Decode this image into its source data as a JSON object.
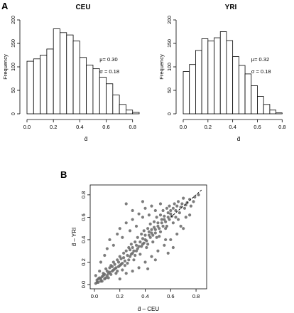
{
  "panel_labels": {
    "a": "A",
    "b": "B"
  },
  "chart_data": [
    {
      "type": "bar",
      "title": "CEU",
      "xlabel": "d̄",
      "ylabel": "Frequency",
      "bin_width": 0.05,
      "bin_start": 0.0,
      "values": [
        112,
        117,
        125,
        138,
        181,
        173,
        168,
        155,
        120,
        104,
        96,
        78,
        64,
        40,
        20,
        8,
        3
      ],
      "xlim": [
        0.0,
        0.85
      ],
      "ylim": [
        0,
        200
      ],
      "x_ticks": [
        "0.0",
        "0.2",
        "0.4",
        "0.6",
        "0.8"
      ],
      "y_ticks": [
        "0",
        "50",
        "100",
        "150",
        "200"
      ],
      "stats": {
        "mu": "μ= 0.30",
        "sigma": "σ = 0.18"
      }
    },
    {
      "type": "bar",
      "title": "YRI",
      "xlabel": "d̄",
      "ylabel": "Frequency",
      "bin_width": 0.05,
      "bin_start": 0.0,
      "values": [
        90,
        105,
        135,
        160,
        155,
        162,
        175,
        156,
        122,
        103,
        85,
        60,
        37,
        20,
        8,
        2
      ],
      "xlim": [
        0.0,
        0.85
      ],
      "ylim": [
        0,
        200
      ],
      "x_ticks": [
        "0.0",
        "0.2",
        "0.4",
        "0.6",
        "0.8"
      ],
      "y_ticks": [
        "0",
        "50",
        "100",
        "150",
        "200"
      ],
      "stats": {
        "mu": "μ= 0.32",
        "sigma": "σ = 0.18"
      }
    },
    {
      "type": "scatter",
      "xlabel": "d̄ – CEU",
      "ylabel": "d̄ – YRI",
      "xlim": [
        0.0,
        0.85
      ],
      "ylim": [
        0.0,
        0.85
      ],
      "x_ticks": [
        "0.0",
        "0.2",
        "0.4",
        "0.6",
        "0.8"
      ],
      "y_ticks": [
        "0.0",
        "0.2",
        "0.4",
        "0.6",
        "0.8"
      ],
      "reference_line": "y = x (dashed)",
      "point_color": "#666666",
      "points": [
        [
          0.02,
          0.02
        ],
        [
          0.03,
          0.05
        ],
        [
          0.05,
          0.03
        ],
        [
          0.01,
          0.08
        ],
        [
          0.06,
          0.07
        ],
        [
          0.04,
          0.12
        ],
        [
          0.08,
          0.05
        ],
        [
          0.07,
          0.1
        ],
        [
          0.1,
          0.08
        ],
        [
          0.09,
          0.14
        ],
        [
          0.12,
          0.11
        ],
        [
          0.11,
          0.06
        ],
        [
          0.13,
          0.17
        ],
        [
          0.14,
          0.12
        ],
        [
          0.15,
          0.2
        ],
        [
          0.16,
          0.14
        ],
        [
          0.17,
          0.1
        ],
        [
          0.18,
          0.22
        ],
        [
          0.19,
          0.16
        ],
        [
          0.2,
          0.25
        ],
        [
          0.21,
          0.18
        ],
        [
          0.22,
          0.13
        ],
        [
          0.23,
          0.28
        ],
        [
          0.24,
          0.21
        ],
        [
          0.25,
          0.3
        ],
        [
          0.26,
          0.19
        ],
        [
          0.27,
          0.33
        ],
        [
          0.28,
          0.25
        ],
        [
          0.29,
          0.36
        ],
        [
          0.3,
          0.28
        ],
        [
          0.31,
          0.22
        ],
        [
          0.32,
          0.38
        ],
        [
          0.33,
          0.3
        ],
        [
          0.34,
          0.42
        ],
        [
          0.35,
          0.34
        ],
        [
          0.36,
          0.27
        ],
        [
          0.37,
          0.45
        ],
        [
          0.38,
          0.36
        ],
        [
          0.39,
          0.48
        ],
        [
          0.4,
          0.4
        ],
        [
          0.41,
          0.33
        ],
        [
          0.42,
          0.5
        ],
        [
          0.43,
          0.44
        ],
        [
          0.44,
          0.54
        ],
        [
          0.45,
          0.46
        ],
        [
          0.46,
          0.38
        ],
        [
          0.47,
          0.56
        ],
        [
          0.48,
          0.49
        ],
        [
          0.49,
          0.6
        ],
        [
          0.5,
          0.52
        ],
        [
          0.51,
          0.43
        ],
        [
          0.52,
          0.62
        ],
        [
          0.53,
          0.55
        ],
        [
          0.54,
          0.66
        ],
        [
          0.55,
          0.58
        ],
        [
          0.56,
          0.5
        ],
        [
          0.57,
          0.68
        ],
        [
          0.58,
          0.6
        ],
        [
          0.59,
          0.7
        ],
        [
          0.6,
          0.63
        ],
        [
          0.62,
          0.55
        ],
        [
          0.63,
          0.72
        ],
        [
          0.64,
          0.66
        ],
        [
          0.66,
          0.74
        ],
        [
          0.68,
          0.69
        ],
        [
          0.7,
          0.77
        ],
        [
          0.72,
          0.71
        ],
        [
          0.75,
          0.76
        ],
        [
          0.78,
          0.74
        ],
        [
          0.82,
          0.8
        ],
        [
          0.05,
          0.2
        ],
        [
          0.08,
          0.26
        ],
        [
          0.1,
          0.32
        ],
        [
          0.12,
          0.4
        ],
        [
          0.15,
          0.35
        ],
        [
          0.18,
          0.45
        ],
        [
          0.2,
          0.5
        ],
        [
          0.22,
          0.42
        ],
        [
          0.25,
          0.55
        ],
        [
          0.28,
          0.48
        ],
        [
          0.3,
          0.58
        ],
        [
          0.33,
          0.52
        ],
        [
          0.35,
          0.63
        ],
        [
          0.38,
          0.6
        ],
        [
          0.4,
          0.68
        ],
        [
          0.43,
          0.62
        ],
        [
          0.45,
          0.7
        ],
        [
          0.48,
          0.66
        ],
        [
          0.52,
          0.72
        ],
        [
          0.25,
          0.72
        ],
        [
          0.38,
          0.74
        ],
        [
          0.3,
          0.66
        ],
        [
          0.2,
          0.05
        ],
        [
          0.25,
          0.1
        ],
        [
          0.3,
          0.12
        ],
        [
          0.35,
          0.15
        ],
        [
          0.4,
          0.2
        ],
        [
          0.45,
          0.25
        ],
        [
          0.5,
          0.3
        ],
        [
          0.55,
          0.35
        ],
        [
          0.6,
          0.4
        ],
        [
          0.65,
          0.45
        ],
        [
          0.42,
          0.14
        ],
        [
          0.48,
          0.22
        ],
        [
          0.58,
          0.28
        ],
        [
          0.62,
          0.33
        ],
        [
          0.68,
          0.52
        ],
        [
          0.72,
          0.6
        ],
        [
          0.75,
          0.62
        ],
        [
          0.66,
          0.58
        ],
        [
          0.7,
          0.5
        ],
        [
          0.56,
          0.4
        ],
        [
          0.01,
          0.01
        ],
        [
          0.02,
          0.04
        ],
        [
          0.03,
          0.02
        ],
        [
          0.04,
          0.06
        ],
        [
          0.05,
          0.05
        ],
        [
          0.06,
          0.03
        ],
        [
          0.07,
          0.08
        ],
        [
          0.08,
          0.09
        ],
        [
          0.09,
          0.06
        ],
        [
          0.1,
          0.12
        ],
        [
          0.11,
          0.1
        ],
        [
          0.12,
          0.15
        ],
        [
          0.13,
          0.09
        ],
        [
          0.14,
          0.16
        ],
        [
          0.15,
          0.13
        ],
        [
          0.16,
          0.18
        ],
        [
          0.17,
          0.15
        ],
        [
          0.18,
          0.12
        ],
        [
          0.19,
          0.2
        ],
        [
          0.2,
          0.17
        ],
        [
          0.21,
          0.23
        ],
        [
          0.22,
          0.19
        ],
        [
          0.23,
          0.24
        ],
        [
          0.24,
          0.17
        ],
        [
          0.26,
          0.26
        ],
        [
          0.27,
          0.22
        ],
        [
          0.28,
          0.31
        ],
        [
          0.29,
          0.27
        ],
        [
          0.3,
          0.33
        ],
        [
          0.31,
          0.3
        ],
        [
          0.32,
          0.26
        ],
        [
          0.33,
          0.35
        ],
        [
          0.34,
          0.32
        ],
        [
          0.36,
          0.38
        ],
        [
          0.37,
          0.34
        ],
        [
          0.38,
          0.41
        ],
        [
          0.39,
          0.37
        ],
        [
          0.4,
          0.44
        ],
        [
          0.41,
          0.39
        ],
        [
          0.42,
          0.36
        ],
        [
          0.43,
          0.47
        ],
        [
          0.44,
          0.42
        ],
        [
          0.45,
          0.49
        ],
        [
          0.46,
          0.44
        ],
        [
          0.47,
          0.51
        ],
        [
          0.48,
          0.46
        ],
        [
          0.49,
          0.42
        ],
        [
          0.5,
          0.55
        ],
        [
          0.51,
          0.5
        ],
        [
          0.52,
          0.47
        ],
        [
          0.53,
          0.58
        ],
        [
          0.54,
          0.52
        ],
        [
          0.55,
          0.61
        ],
        [
          0.56,
          0.56
        ],
        [
          0.57,
          0.52
        ],
        [
          0.58,
          0.64
        ],
        [
          0.59,
          0.58
        ],
        [
          0.6,
          0.66
        ],
        [
          0.61,
          0.61
        ],
        [
          0.62,
          0.68
        ],
        [
          0.64,
          0.6
        ],
        [
          0.65,
          0.7
        ],
        [
          0.67,
          0.64
        ],
        [
          0.69,
          0.72
        ],
        [
          0.71,
          0.68
        ],
        [
          0.73,
          0.73
        ],
        [
          0.76,
          0.7
        ],
        [
          0.79,
          0.78
        ]
      ]
    }
  ]
}
